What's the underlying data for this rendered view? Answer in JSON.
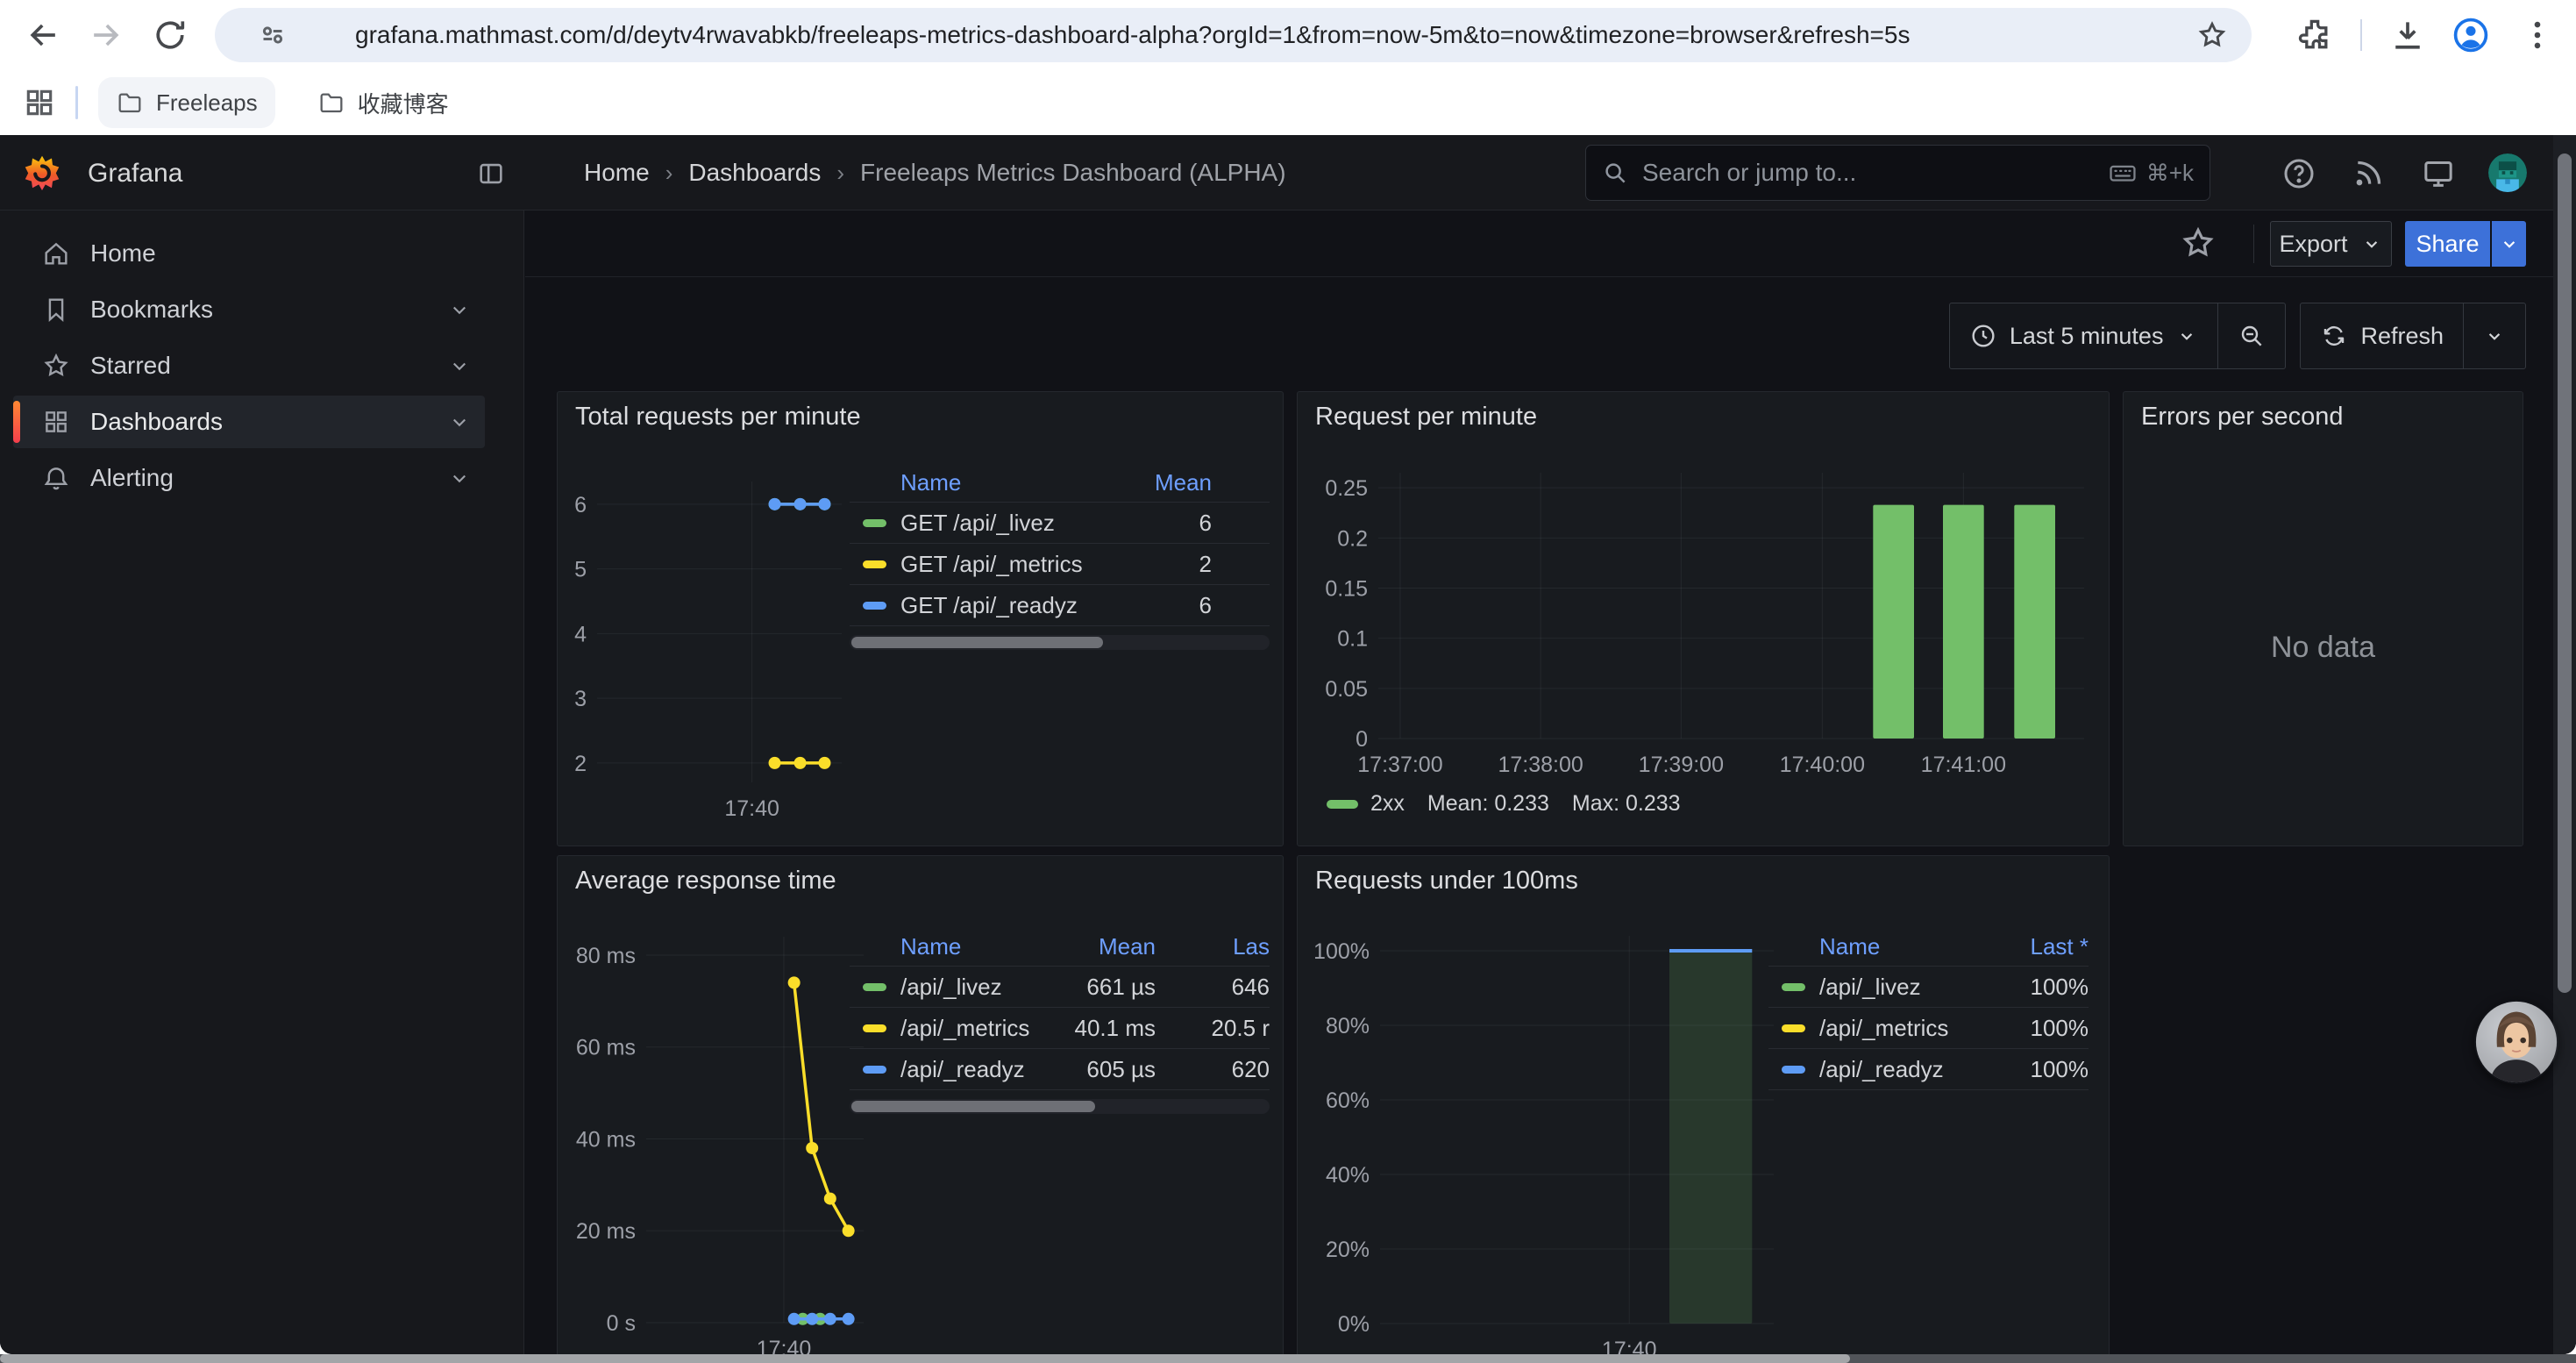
{
  "browser": {
    "url": "grafana.mathmast.com/d/deytv4rwavabkb/freeleaps-metrics-dashboard-alpha?orgId=1&from=now-5m&to=now&timezone=browser&refresh=5s",
    "bookmarks": [
      "Freeleaps",
      "收藏博客"
    ]
  },
  "nav": {
    "brand": "Grafana",
    "items": [
      {
        "label": "Home",
        "icon": "home-icon",
        "expandable": false,
        "active": false
      },
      {
        "label": "Bookmarks",
        "icon": "bookmark-icon",
        "expandable": true,
        "active": false
      },
      {
        "label": "Starred",
        "icon": "star-icon",
        "expandable": true,
        "active": false
      },
      {
        "label": "Dashboards",
        "icon": "apps-icon",
        "expandable": true,
        "active": true
      },
      {
        "label": "Alerting",
        "icon": "bell-icon",
        "expandable": true,
        "active": false
      }
    ]
  },
  "header": {
    "breadcrumbs": [
      "Home",
      "Dashboards",
      "Freeleaps Metrics Dashboard (ALPHA)"
    ],
    "search": {
      "placeholder": "Search or jump to...",
      "shortcut": "⌘+k"
    }
  },
  "toolbar": {
    "export_label": "Export",
    "share_label": "Share"
  },
  "timebar": {
    "range_label": "Last 5 minutes",
    "refresh_label": "Refresh"
  },
  "colors": {
    "green": "#73BF69",
    "yellow": "#FADE2A",
    "blue": "#5E9CF5",
    "button_blue": "#3D71D9",
    "link_blue": "#6E9FFF",
    "active_orange": "#FF780A"
  },
  "panels": {
    "errors": {
      "title": "Errors per second",
      "no_data": "No data"
    }
  },
  "chart_data": [
    {
      "id": "total-requests",
      "type": "line",
      "title": "Total requests per minute",
      "ylim": [
        1.7,
        6.35
      ],
      "grid": true,
      "y_ticks": [
        {
          "v": 6,
          "label": "6"
        },
        {
          "v": 5,
          "label": "5"
        },
        {
          "v": 4,
          "label": "4"
        },
        {
          "v": 3,
          "label": "3"
        },
        {
          "v": 2,
          "label": "2"
        }
      ],
      "x_ticks": [
        {
          "pos": 0.633,
          "label": "17:40"
        }
      ],
      "series": [
        {
          "name": "GET /api/_livez",
          "color": "#73BF69",
          "mean": 6,
          "points": [
            {
              "pos": 0.726,
              "v": 6
            },
            {
              "pos": 0.83,
              "v": 6
            },
            {
              "pos": 0.93,
              "v": 6
            }
          ]
        },
        {
          "name": "GET /api/_metrics",
          "color": "#FADE2A",
          "mean": 2,
          "points": [
            {
              "pos": 0.726,
              "v": 2
            },
            {
              "pos": 0.83,
              "v": 2
            },
            {
              "pos": 0.93,
              "v": 2
            }
          ]
        },
        {
          "name": "GET /api/_readyz",
          "color": "#5E9CF5",
          "mean": 6,
          "points": [
            {
              "pos": 0.726,
              "v": 6
            },
            {
              "pos": 0.83,
              "v": 6
            },
            {
              "pos": 0.93,
              "v": 6
            }
          ]
        }
      ],
      "legend_table": {
        "columns": [
          "Name",
          "Mean"
        ],
        "rows": [
          {
            "color": "#73BF69",
            "name": "GET /api/_livez",
            "values": [
              "6"
            ]
          },
          {
            "color": "#FADE2A",
            "name": "GET /api/_metrics",
            "values": [
              "2"
            ]
          },
          {
            "color": "#5E9CF5",
            "name": "GET /api/_readyz",
            "values": [
              "6"
            ]
          }
        ],
        "scrollbar": true,
        "thumb": "60%"
      }
    },
    {
      "id": "request-per-minute",
      "type": "bar",
      "title": "Request per minute",
      "ylim": [
        0,
        0.265
      ],
      "grid": true,
      "y_ticks": [
        {
          "v": 0.25,
          "label": "0.25"
        },
        {
          "v": 0.2,
          "label": "0.2"
        },
        {
          "v": 0.15,
          "label": "0.15"
        },
        {
          "v": 0.1,
          "label": "0.1"
        },
        {
          "v": 0.05,
          "label": "0.05"
        },
        {
          "v": 0,
          "label": "0"
        }
      ],
      "x_ticks": [
        {
          "pos": 0.031,
          "label": "17:37:00"
        },
        {
          "pos": 0.23,
          "label": "17:38:00"
        },
        {
          "pos": 0.429,
          "label": "17:39:00"
        },
        {
          "pos": 0.629,
          "label": "17:40:00"
        },
        {
          "pos": 0.829,
          "label": "17:41:00"
        }
      ],
      "bars": [
        {
          "pos": 0.73,
          "w": 0.058,
          "v": 0.233,
          "color": "#73BF69"
        },
        {
          "pos": 0.829,
          "w": 0.058,
          "v": 0.233,
          "color": "#73BF69"
        },
        {
          "pos": 0.93,
          "w": 0.058,
          "v": 0.233,
          "color": "#73BF69"
        }
      ],
      "legend": {
        "name": "2xx",
        "color": "#73BF69",
        "stats": [
          "Mean: 0.233",
          "Max: 0.233"
        ]
      }
    },
    {
      "id": "avg-response-time",
      "type": "line",
      "title": "Average response time",
      "ylim": [
        0,
        84
      ],
      "grid": true,
      "y_ticks": [
        {
          "v": 80,
          "label": "80 ms"
        },
        {
          "v": 60,
          "label": "60 ms"
        },
        {
          "v": 40,
          "label": "40 ms"
        },
        {
          "v": 20,
          "label": "20 ms"
        },
        {
          "v": 0,
          "label": "0 s"
        }
      ],
      "x_ticks": [
        {
          "pos": 0.633,
          "label": "17:40"
        }
      ],
      "series": [
        {
          "name": "/api/_metrics",
          "color": "#FADE2A",
          "points": [
            {
              "pos": 0.68,
              "v": 74
            },
            {
              "pos": 0.763,
              "v": 38
            },
            {
              "pos": 0.846,
              "v": 27
            },
            {
              "pos": 0.93,
              "v": 20
            }
          ]
        },
        {
          "name": "/api/_livez",
          "color": "#73BF69",
          "line": false,
          "points": [
            {
              "pos": 0.72,
              "v": 0.8
            },
            {
              "pos": 0.8,
              "v": 0.8
            }
          ]
        },
        {
          "name": "/api/_readyz",
          "color": "#5E9CF5",
          "points": [
            {
              "pos": 0.68,
              "v": 0.8
            },
            {
              "pos": 0.763,
              "v": 0.8
            },
            {
              "pos": 0.846,
              "v": 0.8
            },
            {
              "pos": 0.93,
              "v": 0.8
            }
          ]
        }
      ],
      "legend_table": {
        "columns": [
          "Name",
          "Mean",
          "Las"
        ],
        "rows": [
          {
            "color": "#73BF69",
            "name": "/api/_livez",
            "values": [
              "661 µs",
              "646"
            ]
          },
          {
            "color": "#FADE2A",
            "name": "/api/_metrics",
            "values": [
              "40.1 ms",
              "20.5 r"
            ]
          },
          {
            "color": "#5E9CF5",
            "name": "/api/_readyz",
            "values": [
              "605 µs",
              "620"
            ]
          }
        ],
        "scrollbar": true,
        "thumb": "58%"
      }
    },
    {
      "id": "requests-under-100ms",
      "type": "bar",
      "title": "Requests under 100ms",
      "ylim": [
        0,
        104
      ],
      "grid": true,
      "y_ticks": [
        {
          "v": 100,
          "label": "100%"
        },
        {
          "v": 80,
          "label": "80%"
        },
        {
          "v": 60,
          "label": "60%"
        },
        {
          "v": 40,
          "label": "40%"
        },
        {
          "v": 20,
          "label": "20%"
        },
        {
          "v": 0,
          "label": "0%"
        }
      ],
      "x_ticks": [
        {
          "pos": 0.633,
          "label": "17:40"
        }
      ],
      "bars": [
        {
          "pos": 0.84,
          "w": 0.21,
          "v": 100,
          "color": "rgba(115,191,105,0.18)",
          "cap": "#5E9CF5"
        }
      ],
      "legend_table": {
        "columns": [
          "Name",
          "Last *"
        ],
        "rows": [
          {
            "color": "#73BF69",
            "name": "/api/_livez",
            "values": [
              "100%"
            ]
          },
          {
            "color": "#FADE2A",
            "name": "/api/_metrics",
            "values": [
              "100%"
            ]
          },
          {
            "color": "#5E9CF5",
            "name": "/api/_readyz",
            "values": [
              "100%"
            ]
          }
        ],
        "scrollbar": false
      }
    }
  ]
}
